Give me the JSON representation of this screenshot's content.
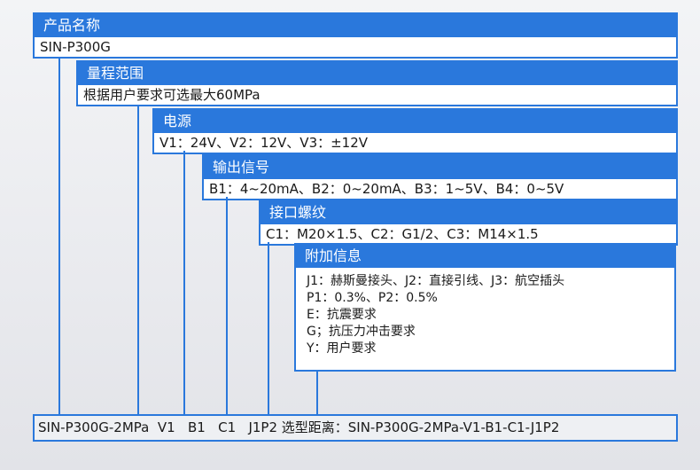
{
  "colors": {
    "accent": "#2a78dc"
  },
  "sections": [
    {
      "title": "产品名称",
      "value": "SIN-P300G"
    },
    {
      "title": "量程范围",
      "value": "根据用户要求可选最大60MPa"
    },
    {
      "title": "电源",
      "value": "V1：24V、V2：12V、V3：±12V"
    },
    {
      "title": "输出信号",
      "value": "B1：4~20mA、B2：0~20mA、B3：1~5V、B4：0~5V"
    },
    {
      "title": "接口螺纹",
      "value": "C1：M20×1.5、C2：G1/2、C3：M14×1.5"
    },
    {
      "title": "附加信息",
      "lines": [
        "J1：赫斯曼接头、J2：直接引线、J3：航空插头",
        "P1：0.3%、P2：0.5%",
        "E：抗震要求",
        "G；抗压力冲击要求",
        "Y：用户要求"
      ]
    }
  ],
  "summary": "SIN-P300G-2MPa  V1   B1   C1   J1P2 选型距离：SIN-P300G-2MPa-V1-B1-C1-J1P2"
}
